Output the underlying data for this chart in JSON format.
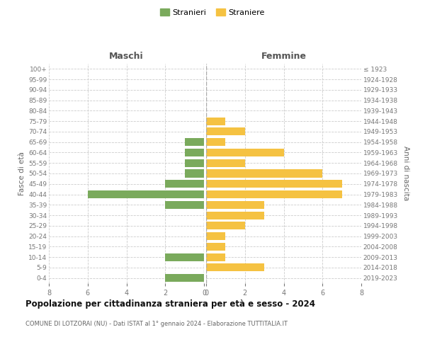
{
  "age_groups": [
    "0-4",
    "5-9",
    "10-14",
    "15-19",
    "20-24",
    "25-29",
    "30-34",
    "35-39",
    "40-44",
    "45-49",
    "50-54",
    "55-59",
    "60-64",
    "65-69",
    "70-74",
    "75-79",
    "80-84",
    "85-89",
    "90-94",
    "95-99",
    "100+"
  ],
  "birth_years": [
    "2019-2023",
    "2014-2018",
    "2009-2013",
    "2004-2008",
    "1999-2003",
    "1994-1998",
    "1989-1993",
    "1984-1988",
    "1979-1983",
    "1974-1978",
    "1969-1973",
    "1964-1968",
    "1959-1963",
    "1954-1958",
    "1949-1953",
    "1944-1948",
    "1939-1943",
    "1934-1938",
    "1929-1933",
    "1924-1928",
    "≤ 1923"
  ],
  "males": [
    2,
    0,
    2,
    0,
    0,
    0,
    0,
    2,
    6,
    2,
    1,
    1,
    1,
    1,
    0,
    0,
    0,
    0,
    0,
    0,
    0
  ],
  "females": [
    0,
    3,
    1,
    1,
    1,
    2,
    3,
    3,
    7,
    7,
    6,
    2,
    4,
    1,
    2,
    1,
    0,
    0,
    0,
    0,
    0
  ],
  "male_color": "#7aaa5c",
  "female_color": "#f5c242",
  "grid_color": "#cccccc",
  "title": "Popolazione per cittadinanza straniera per età e sesso - 2024",
  "subtitle": "COMUNE DI LOTZORAI (NU) - Dati ISTAT al 1° gennaio 2024 - Elaborazione TUTTITALIA.IT",
  "xlabel_left": "Maschi",
  "xlabel_right": "Femmine",
  "ylabel_left": "Fasce di età",
  "ylabel_right": "Anni di nascita",
  "legend_male": "Stranieri",
  "legend_female": "Straniere",
  "xlim": 8,
  "background_color": "#ffffff"
}
